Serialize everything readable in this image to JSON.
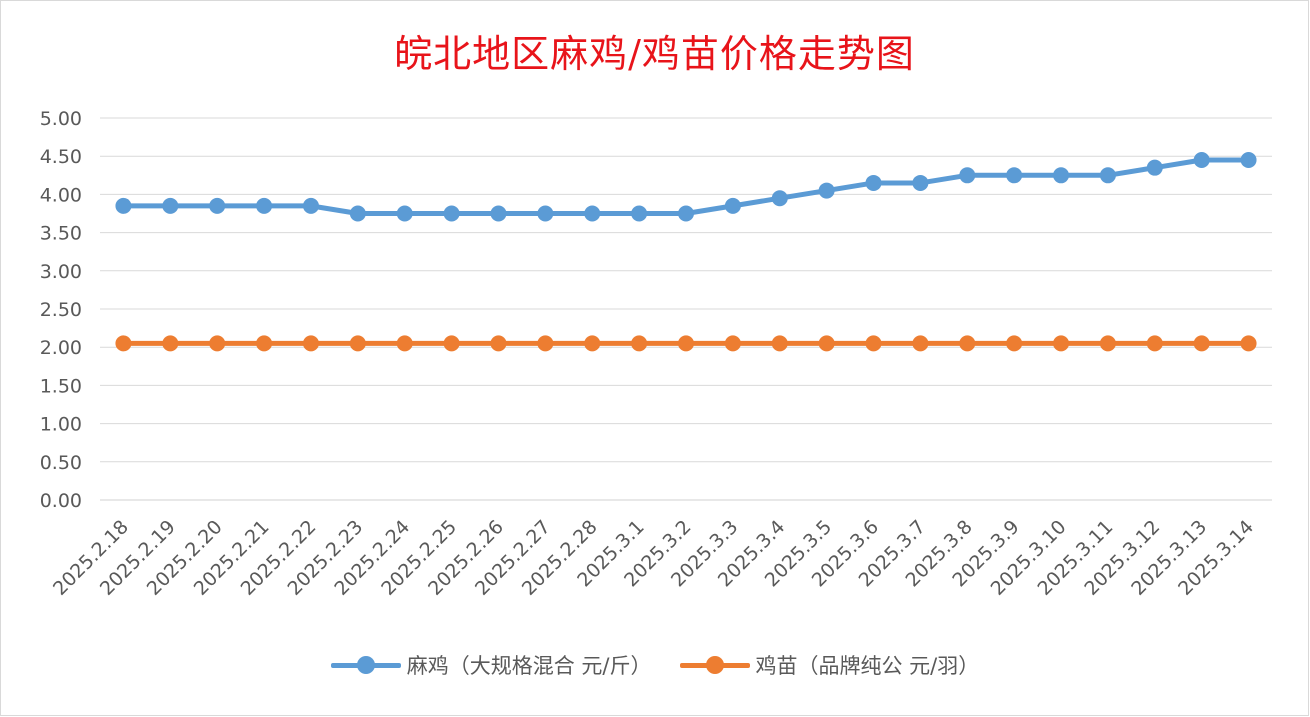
{
  "chart_data": {
    "type": "line",
    "title": "皖北地区麻鸡/鸡苗价格走势图",
    "categories": [
      "2025.2.18",
      "2025.2.19",
      "2025.2.20",
      "2025.2.21",
      "2025.2.22",
      "2025.2.23",
      "2025.2.24",
      "2025.2.25",
      "2025.2.26",
      "2025.2.27",
      "2025.2.28",
      "2025.3.1",
      "2025.3.2",
      "2025.3.3",
      "2025.3.4",
      "2025.3.5",
      "2025.3.6",
      "2025.3.7",
      "2025.3.8",
      "2025.3.9",
      "2025.3.10",
      "2025.3.11",
      "2025.3.12",
      "2025.3.13",
      "2025.3.14"
    ],
    "series": [
      {
        "name": "麻鸡（大规格混合 元/斤）",
        "color": "#5b9bd5",
        "values": [
          3.85,
          3.85,
          3.85,
          3.85,
          3.85,
          3.75,
          3.75,
          3.75,
          3.75,
          3.75,
          3.75,
          3.75,
          3.75,
          3.85,
          3.95,
          4.05,
          4.15,
          4.15,
          4.25,
          4.25,
          4.25,
          4.25,
          4.35,
          4.45,
          4.45
        ]
      },
      {
        "name": "鸡苗（品牌纯公 元/羽）",
        "color": "#ed7d31",
        "values": [
          2.05,
          2.05,
          2.05,
          2.05,
          2.05,
          2.05,
          2.05,
          2.05,
          2.05,
          2.05,
          2.05,
          2.05,
          2.05,
          2.05,
          2.05,
          2.05,
          2.05,
          2.05,
          2.05,
          2.05,
          2.05,
          2.05,
          2.05,
          2.05,
          2.05
        ]
      }
    ],
    "ylim": [
      0,
      5
    ],
    "yticks": [
      "0.00",
      "0.50",
      "1.00",
      "1.50",
      "2.00",
      "2.50",
      "3.00",
      "3.50",
      "4.00",
      "4.50",
      "5.00"
    ],
    "grid": true,
    "legend_position": "bottom"
  }
}
